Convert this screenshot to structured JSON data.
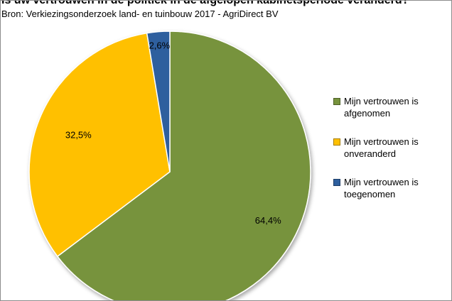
{
  "chart_data": {
    "type": "pie",
    "title": "Is uw vertrouwen in de politiek in de afgelopen kabinetsperiode veranderd?",
    "subtitle": "Bron: Verkiezingsonderzoek land- en tuinbouw 2017 - AgriDirect BV",
    "slices": [
      {
        "label": "Mijn vertrouwen is\nafgenomen",
        "value": 64.4,
        "display": "64,4%",
        "color": "#77933c"
      },
      {
        "label": "Mijn vertrouwen is\nonveranderd",
        "value": 32.5,
        "display": "32,5%",
        "color": "#ffc000"
      },
      {
        "label": "Mijn vertrouwen is\ntoegenomen",
        "value": 2.6,
        "display": "2,6%",
        "color": "#2e5f9e"
      }
    ],
    "legend_position": "right"
  }
}
